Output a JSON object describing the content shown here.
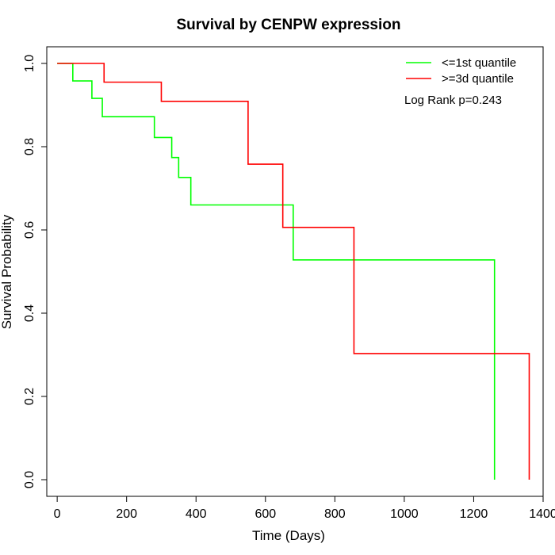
{
  "chart_data": {
    "type": "line",
    "title": "Survival by CENPW expression",
    "xlabel": "Time (Days)",
    "ylabel": "Survival Probability",
    "xlim": [
      -30,
      1400
    ],
    "ylim": [
      -0.04,
      1.04
    ],
    "x_ticks": [
      0,
      200,
      400,
      600,
      800,
      1000,
      1200,
      1400
    ],
    "x_tick_labels": [
      "0",
      "200",
      "400",
      "600",
      "800",
      "1000",
      "1200",
      "1400"
    ],
    "y_ticks": [
      0.0,
      0.2,
      0.4,
      0.6,
      0.8,
      1.0
    ],
    "y_tick_labels": [
      "0.0",
      "0.2",
      "0.4",
      "0.6",
      "0.8",
      "1.0"
    ],
    "grid": false,
    "legend_position": "top-right",
    "annotation": "Log Rank p=0.243",
    "series": [
      {
        "name": "<=1st quantile",
        "color": "#00ff00",
        "x": [
          0,
          45,
          100,
          130,
          280,
          330,
          350,
          385,
          680,
          1260,
          1260
        ],
        "y": [
          1.0,
          0.958,
          0.916,
          0.872,
          0.822,
          0.774,
          0.726,
          0.66,
          0.528,
          0.528,
          0.0
        ]
      },
      {
        "name": ">=3d quantile",
        "color": "#ff0000",
        "x": [
          0,
          135,
          300,
          550,
          650,
          855,
          1360,
          1360
        ],
        "y": [
          1.0,
          0.955,
          0.909,
          0.758,
          0.606,
          0.303,
          0.303,
          0.0
        ]
      }
    ]
  }
}
